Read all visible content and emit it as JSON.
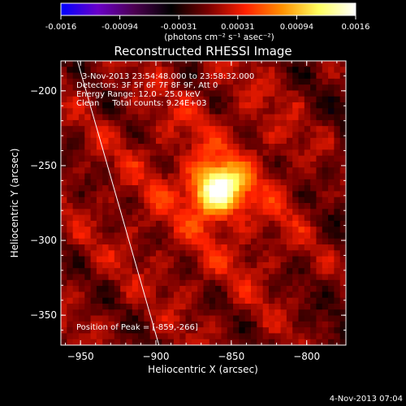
{
  "colorbar": {
    "ticks": [
      "-0.0016",
      "-0.00094",
      "-0.00031",
      "0.00031",
      "0.00094",
      "0.0016"
    ],
    "unit_label": "(photons cm⁻² s⁻¹ asec⁻²)",
    "colors": [
      "#0000ff",
      "#6a00c8",
      "#4b0050",
      "#000000",
      "#7a0000",
      "#ff2000",
      "#ff9000",
      "#ffff60",
      "#ffffff"
    ]
  },
  "chart_data": {
    "type": "heatmap",
    "title": "Reconstructed RHESSI Image",
    "xlabel": "Heliocentric X (arcsec)",
    "ylabel": "Heliocentric Y (arcsec)",
    "xlim": [
      -963,
      -774
    ],
    "ylim": [
      -370,
      -180
    ],
    "x_ticks": [
      -950,
      -900,
      -850,
      -800
    ],
    "y_ticks": [
      -200,
      -250,
      -300,
      -350
    ],
    "x_tick_labels": [
      "−950",
      "−900",
      "−850",
      "−800"
    ],
    "y_tick_labels": [
      "−200",
      "−250",
      "−300",
      "−350"
    ],
    "peak": {
      "x": -859,
      "y": -266
    },
    "limb_line": [
      [
        -952,
        -180
      ],
      [
        -898,
        -370
      ]
    ],
    "annotations": {
      "time_range": "3-Nov-2013 23:54:48.000 to 23:58:32.000",
      "detectors": "Detectors: 3F 5F 6F 7F 8F 9F, Att 0",
      "energy": "Energy Range: 12.0 - 25.0 keV",
      "clean": "Clean     Total counts: 9.24E+03",
      "peak_text": "Position of Peak = [-859,-266]"
    }
  },
  "footer_date": "4-Nov-2013 07:04"
}
